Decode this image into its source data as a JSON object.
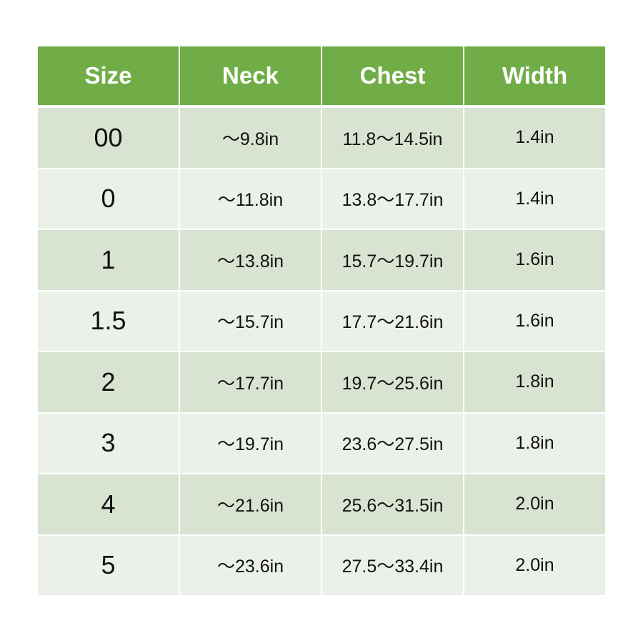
{
  "headers": [
    "Size",
    "Neck",
    "Chest",
    "Width"
  ],
  "rows": [
    [
      "00",
      "～9.8in",
      "11.8～14.5in",
      "1.4in"
    ],
    [
      "0",
      "～11.8in",
      "13.8～17.7in",
      "1.4in"
    ],
    [
      "1",
      "～13.8in",
      "15.7～19.7in",
      "1.6in"
    ],
    [
      "1.5",
      "～15.7in",
      "17.7～21.6in",
      "1.6in"
    ],
    [
      "2",
      "～17.7in",
      "19.7～25.6in",
      "1.8in"
    ],
    [
      "3",
      "～19.7in",
      "23.6～27.5in",
      "1.8in"
    ],
    [
      "4",
      "～21.6in",
      "25.6～31.5in",
      "2.0in"
    ],
    [
      "5",
      "～23.6in",
      "27.5～33.4in",
      "2.0in"
    ]
  ],
  "colors": {
    "header": "#70ad47",
    "row_odd": "#d8e4d1",
    "row_even": "#ebf0e8"
  }
}
